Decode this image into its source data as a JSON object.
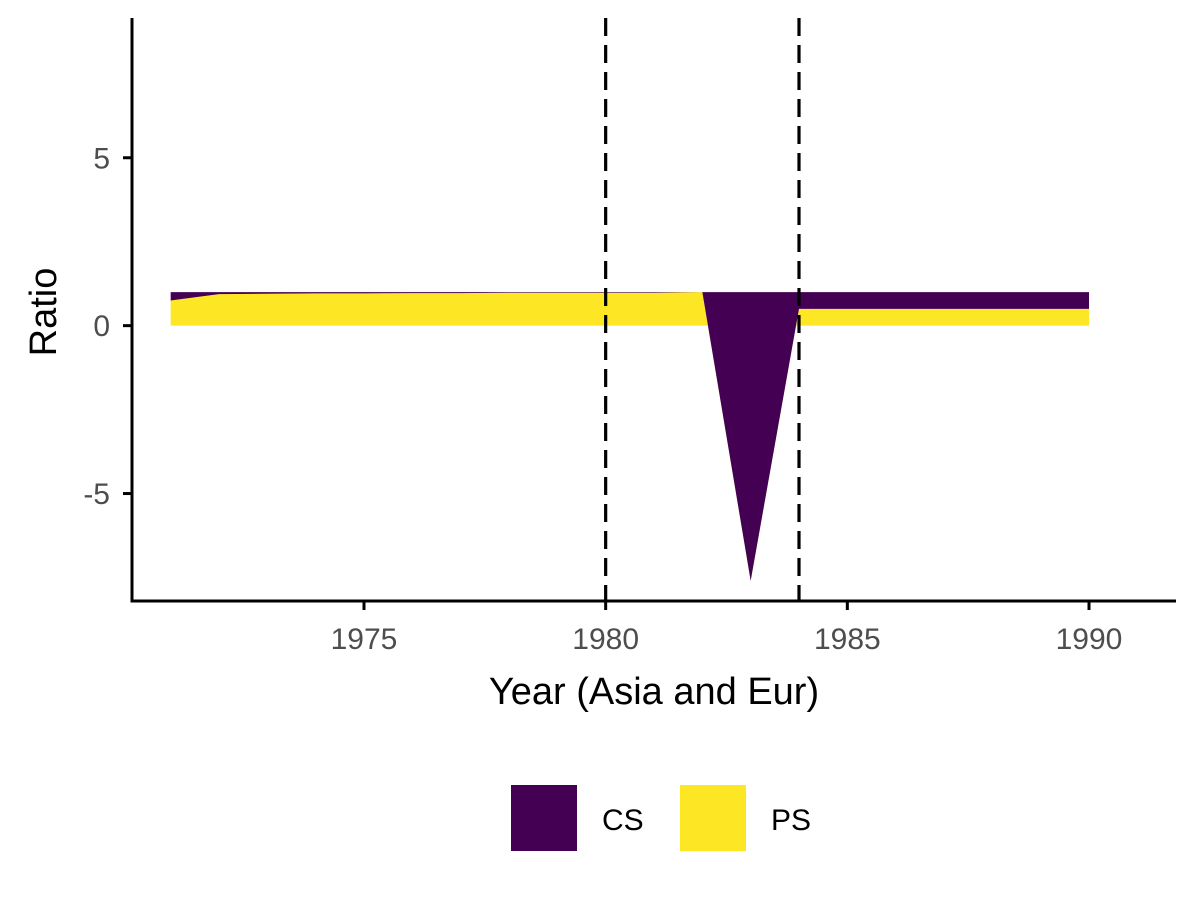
{
  "chart_data": {
    "type": "area",
    "xlabel": "Year (Asia and Eur)",
    "ylabel": "Ratio",
    "xlim": [
      1970.2,
      1991.8
    ],
    "ylim": [
      -8.2,
      9.4
    ],
    "x_ticks": [
      1975,
      1980,
      1985,
      1990
    ],
    "x_tick_labels": [
      "1975",
      "1980",
      "1985",
      "1990"
    ],
    "y_ticks": [
      5,
      0,
      -5
    ],
    "y_tick_labels": [
      "5",
      "0",
      "-5"
    ],
    "grid": false,
    "legend_position": "bottom",
    "stacked": true,
    "vlines": [
      1980,
      1984
    ],
    "vline_style": "dashed",
    "x": [
      1971,
      1972,
      1973,
      1974,
      1975,
      1976,
      1977,
      1978,
      1979,
      1980,
      1981,
      1982,
      1983,
      1984,
      1985,
      1986,
      1987,
      1988,
      1989,
      1990
    ],
    "series": [
      {
        "name": "CS",
        "color": "#440154",
        "values": [
          0.25,
          0.06,
          0.05,
          0.04,
          0.04,
          0.03,
          0.03,
          0.02,
          0.02,
          0.02,
          0.02,
          0.0,
          8.6,
          0.5,
          0.5,
          0.5,
          0.5,
          0.5,
          0.5,
          0.5
        ]
      },
      {
        "name": "PS",
        "color": "#FDE725",
        "values": [
          0.75,
          0.94,
          0.95,
          0.96,
          0.96,
          0.97,
          0.97,
          0.98,
          0.98,
          0.98,
          0.98,
          1.0,
          -7.6,
          0.5,
          0.5,
          0.5,
          0.5,
          0.5,
          0.5,
          0.5
        ]
      }
    ]
  }
}
